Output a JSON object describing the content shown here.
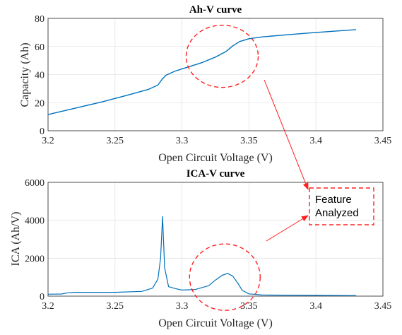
{
  "chart_data": [
    {
      "type": "line",
      "title": "Ah-V curve",
      "xlabel": "Open Circuit Voltage (V)",
      "ylabel": "Capacity (Ah)",
      "xlim": [
        3.2,
        3.45
      ],
      "ylim": [
        0,
        80
      ],
      "x_ticks": [
        "3.2",
        "3.25",
        "3.3",
        "3.35",
        "3.4",
        "3.45"
      ],
      "y_ticks": [
        "0",
        "20",
        "40",
        "60",
        "80"
      ],
      "grid": true,
      "series": [
        {
          "color": "#0072bd",
          "x": [
            3.2,
            3.22,
            3.24,
            3.26,
            3.275,
            3.282,
            3.285,
            3.288,
            3.295,
            3.305,
            3.315,
            3.325,
            3.333,
            3.338,
            3.343,
            3.35,
            3.36,
            3.38,
            3.4,
            3.43
          ],
          "y": [
            11.5,
            16,
            20.5,
            25.5,
            29.5,
            32.5,
            36.5,
            39.5,
            42.5,
            45.5,
            48.5,
            52.5,
            56.5,
            60.5,
            63.5,
            65.5,
            66.8,
            68.5,
            70,
            72
          ]
        }
      ],
      "annotation": {
        "type": "ellipse",
        "center": [
          3.33,
          53
        ],
        "style": "red-dashed"
      }
    },
    {
      "type": "line",
      "title": "ICA-V curve",
      "xlabel": "Open Circuit Voltage (V)",
      "ylabel": "ICA (Ah/V)",
      "xlim": [
        3.2,
        3.45
      ],
      "ylim": [
        0,
        6000
      ],
      "x_ticks": [
        "3.2",
        "3.25",
        "3.3",
        "3.35",
        "3.4",
        "3.45"
      ],
      "y_ticks": [
        "0",
        "2000",
        "4000",
        "6000"
      ],
      "grid": true,
      "series": [
        {
          "color": "#0072bd",
          "x": [
            3.2,
            3.21,
            3.215,
            3.22,
            3.25,
            3.27,
            3.278,
            3.282,
            3.284,
            3.2855,
            3.287,
            3.29,
            3.295,
            3.3,
            3.31,
            3.32,
            3.325,
            3.33,
            3.334,
            3.338,
            3.342,
            3.345,
            3.35,
            3.36,
            3.4,
            3.43
          ],
          "y": [
            100,
            110,
            180,
            200,
            200,
            250,
            420,
            900,
            2000,
            4200,
            1500,
            500,
            400,
            320,
            350,
            550,
            850,
            1100,
            1200,
            1050,
            650,
            300,
            120,
            60,
            40,
            30
          ]
        }
      ],
      "annotation": {
        "type": "ellipse",
        "center": [
          3.332,
          1000
        ],
        "style": "red-dashed"
      }
    }
  ],
  "annotation_box": {
    "line1": "Feature",
    "line2": "Analyzed"
  }
}
